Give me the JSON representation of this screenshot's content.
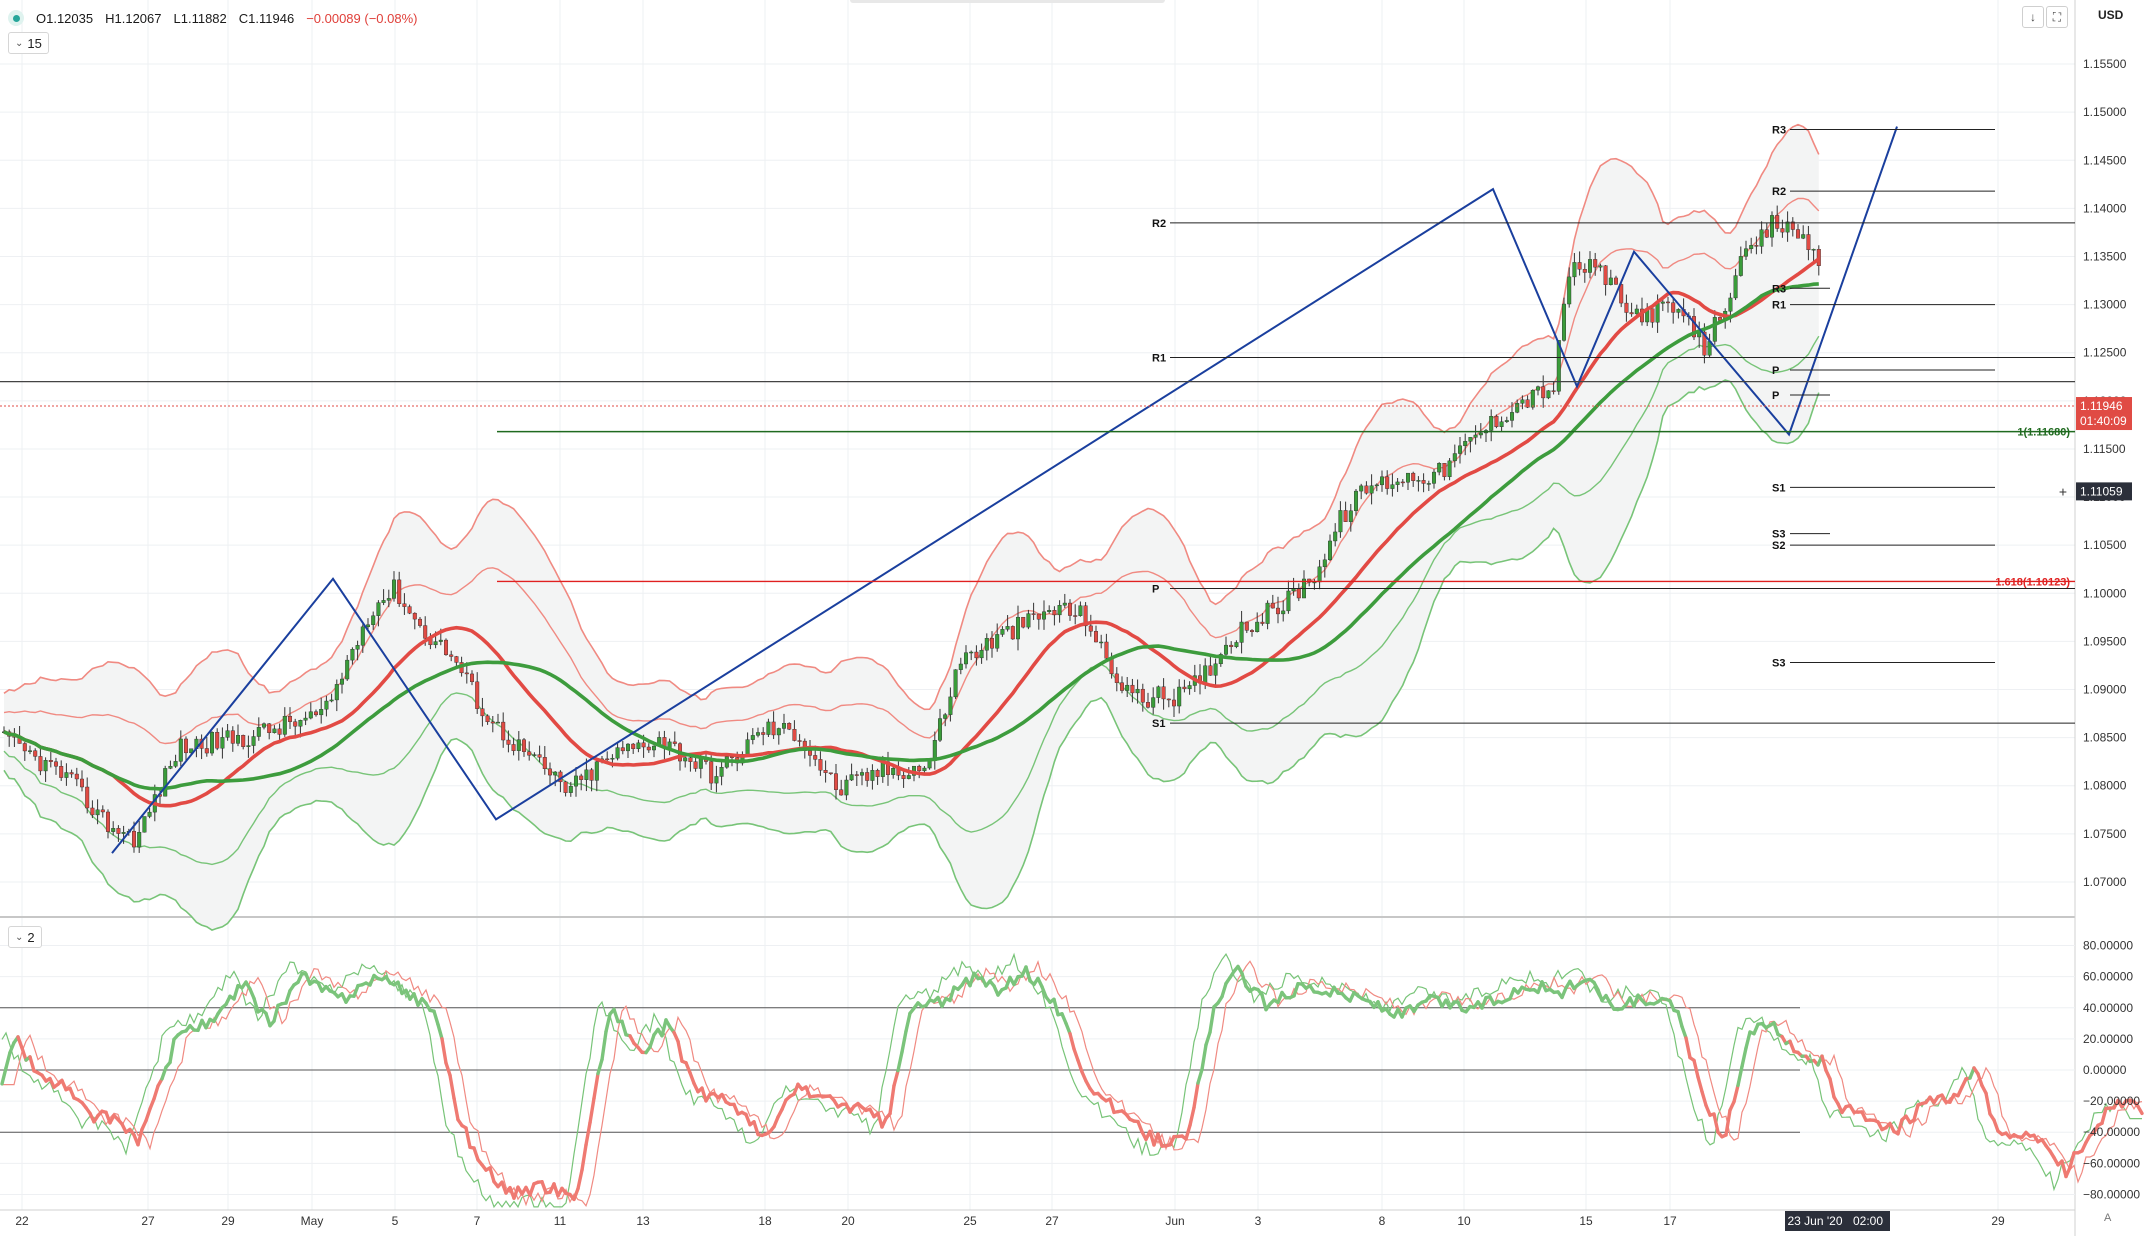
{
  "header": {
    "open": "O1.12035",
    "high": "H1.12067",
    "low": "L1.11882",
    "close": "C1.11946",
    "change": "−0.00089 (−0.08%)",
    "interval": "15",
    "subpane_setting": "2",
    "currency": "USD",
    "icons": {
      "status": "green-dot-icon",
      "down": "down-arrow-icon",
      "expand": "fullscreen-icon",
      "collapse": "chevron-down-icon"
    }
  },
  "colors": {
    "up_candle": "#3a9c3a",
    "down_candle": "#e04b44",
    "bull_ma": "#3d9c3d",
    "bear_ma": "#e24a44",
    "band_red": "#f08a82",
    "band_green": "#78c478",
    "pattern_line": "#1a3f9e",
    "grid": "#eef0f3"
  },
  "chart_data": [
    {
      "type": "candlestick",
      "name": "main",
      "y_axis": {
        "min": 1.0675,
        "max": 1.1575,
        "ticks": [
          "1.15500",
          "1.15000",
          "1.14500",
          "1.14000",
          "1.13500",
          "1.13000",
          "1.12500",
          "1.12000",
          "1.11500",
          "1.11000",
          "1.10500",
          "1.10000",
          "1.09500",
          "1.09000",
          "1.08500",
          "1.08000",
          "1.07500",
          "1.07000"
        ]
      },
      "x_axis": {
        "ticks": [
          "22",
          "27",
          "29",
          "May",
          "5",
          "7",
          "11",
          "13",
          "18",
          "20",
          "25",
          "27",
          "Jun",
          "3",
          "8",
          "10",
          "15",
          "17",
          "23 Jun '20",
          "02:00",
          "29"
        ]
      },
      "current_price": "1.11946",
      "countdown": "01:40:09",
      "crosshair_price": "1.11059",
      "grid": true,
      "close_path": [
        [
          0,
          1.085
        ],
        [
          40,
          1.081
        ],
        [
          66,
          1.076
        ],
        [
          84,
          1.0745
        ],
        [
          110,
          1.084
        ],
        [
          150,
          1.085
        ],
        [
          200,
          1.0875
        ],
        [
          228,
          1.0985
        ],
        [
          243,
          1.1005
        ],
        [
          258,
          1.0965
        ],
        [
          278,
          1.0935
        ],
        [
          300,
          1.087
        ],
        [
          332,
          1.082
        ],
        [
          350,
          1.0795
        ],
        [
          375,
          1.083
        ],
        [
          405,
          1.085
        ],
        [
          440,
          1.081
        ],
        [
          470,
          1.086
        ],
        [
          490,
          1.0855
        ],
        [
          515,
          1.0795
        ],
        [
          540,
          1.0815
        ],
        [
          570,
          1.082
        ],
        [
          590,
          1.093
        ],
        [
          620,
          1.096
        ],
        [
          650,
          1.0985
        ],
        [
          668,
          1.0975
        ],
        [
          682,
          1.092
        ],
        [
          700,
          1.089
        ],
        [
          730,
          1.0895
        ],
        [
          760,
          1.096
        ],
        [
          790,
          1.099
        ],
        [
          810,
          1.1025
        ],
        [
          825,
          1.108
        ],
        [
          840,
          1.111
        ],
        [
          860,
          1.112
        ],
        [
          885,
          1.1125
        ],
        [
          905,
          1.116
        ],
        [
          930,
          1.1195
        ],
        [
          955,
          1.1215
        ],
        [
          965,
          1.134
        ],
        [
          985,
          1.1335
        ],
        [
          1000,
          1.129
        ],
        [
          1030,
          1.1295
        ],
        [
          1048,
          1.1255
        ],
        [
          1070,
          1.134
        ],
        [
          1090,
          1.1385
        ],
        [
          1110,
          1.137
        ],
        [
          1128,
          1.13
        ],
        [
          1145,
          1.1245
        ],
        [
          1160,
          1.122
        ],
        [
          1175,
          1.127
        ],
        [
          1195,
          1.132
        ],
        [
          1212,
          1.1255
        ],
        [
          1235,
          1.1225
        ],
        [
          1255,
          1.123
        ],
        [
          1275,
          1.1195
        ],
        [
          1300,
          1.118
        ],
        [
          1318,
          1.1195
        ]
      ]
    },
    {
      "type": "line",
      "name": "oscillator",
      "y_axis": {
        "min": -90,
        "max": 90,
        "ticks": [
          "80.00000",
          "60.00000",
          "40.00000",
          "20.00000",
          "0.00000",
          "−20.00000",
          "−40.00000",
          "−60.00000",
          "−80.00000"
        ]
      },
      "levels": [
        40,
        0,
        -40
      ],
      "main_path": [
        [
          0,
          -10
        ],
        [
          10,
          20
        ],
        [
          25,
          -5
        ],
        [
          40,
          -10
        ],
        [
          55,
          -30
        ],
        [
          70,
          -30
        ],
        [
          85,
          -45
        ],
        [
          95,
          -20
        ],
        [
          110,
          25
        ],
        [
          130,
          30
        ],
        [
          150,
          55
        ],
        [
          165,
          30
        ],
        [
          185,
          60
        ],
        [
          210,
          45
        ],
        [
          230,
          60
        ],
        [
          250,
          50
        ],
        [
          268,
          38
        ],
        [
          280,
          -25
        ],
        [
          295,
          -60
        ],
        [
          315,
          -80
        ],
        [
          335,
          -75
        ],
        [
          355,
          -80
        ],
        [
          375,
          40
        ],
        [
          395,
          10
        ],
        [
          410,
          30
        ],
        [
          430,
          -15
        ],
        [
          450,
          -20
        ],
        [
          470,
          -45
        ],
        [
          490,
          -10
        ],
        [
          510,
          -20
        ],
        [
          530,
          -25
        ],
        [
          545,
          -35
        ],
        [
          560,
          40
        ],
        [
          580,
          45
        ],
        [
          600,
          60
        ],
        [
          615,
          50
        ],
        [
          630,
          65
        ],
        [
          650,
          40
        ],
        [
          670,
          -10
        ],
        [
          690,
          -30
        ],
        [
          710,
          -45
        ],
        [
          730,
          -45
        ],
        [
          745,
          35
        ],
        [
          760,
          65
        ],
        [
          780,
          40
        ],
        [
          800,
          55
        ],
        [
          820,
          50
        ],
        [
          840,
          45
        ],
        [
          860,
          35
        ],
        [
          880,
          45
        ],
        [
          900,
          40
        ],
        [
          920,
          45
        ],
        [
          940,
          55
        ],
        [
          960,
          50
        ],
        [
          975,
          60
        ],
        [
          990,
          40
        ],
        [
          1010,
          45
        ],
        [
          1030,
          40
        ],
        [
          1050,
          -25
        ],
        [
          1060,
          -45
        ],
        [
          1075,
          25
        ],
        [
          1090,
          30
        ],
        [
          1100,
          15
        ],
        [
          1120,
          5
        ],
        [
          1130,
          -25
        ],
        [
          1150,
          -30
        ],
        [
          1165,
          -40
        ],
        [
          1185,
          -20
        ],
        [
          1200,
          -20
        ],
        [
          1215,
          0
        ],
        [
          1230,
          -45
        ],
        [
          1250,
          -40
        ],
        [
          1260,
          -55
        ],
        [
          1270,
          -65
        ],
        [
          1285,
          -40
        ],
        [
          1300,
          -20
        ],
        [
          1318,
          -25
        ]
      ]
    }
  ],
  "annotations": {
    "fib_green": "1(1.11680)",
    "fib_red": "1.618(1.10123)",
    "pivots_left": [
      "R2",
      "R1",
      "P",
      "S1"
    ],
    "pivots_right": [
      "R3",
      "R2",
      "R3",
      "R1",
      "P",
      "P",
      "S1",
      "S3",
      "S2",
      "S3"
    ]
  }
}
